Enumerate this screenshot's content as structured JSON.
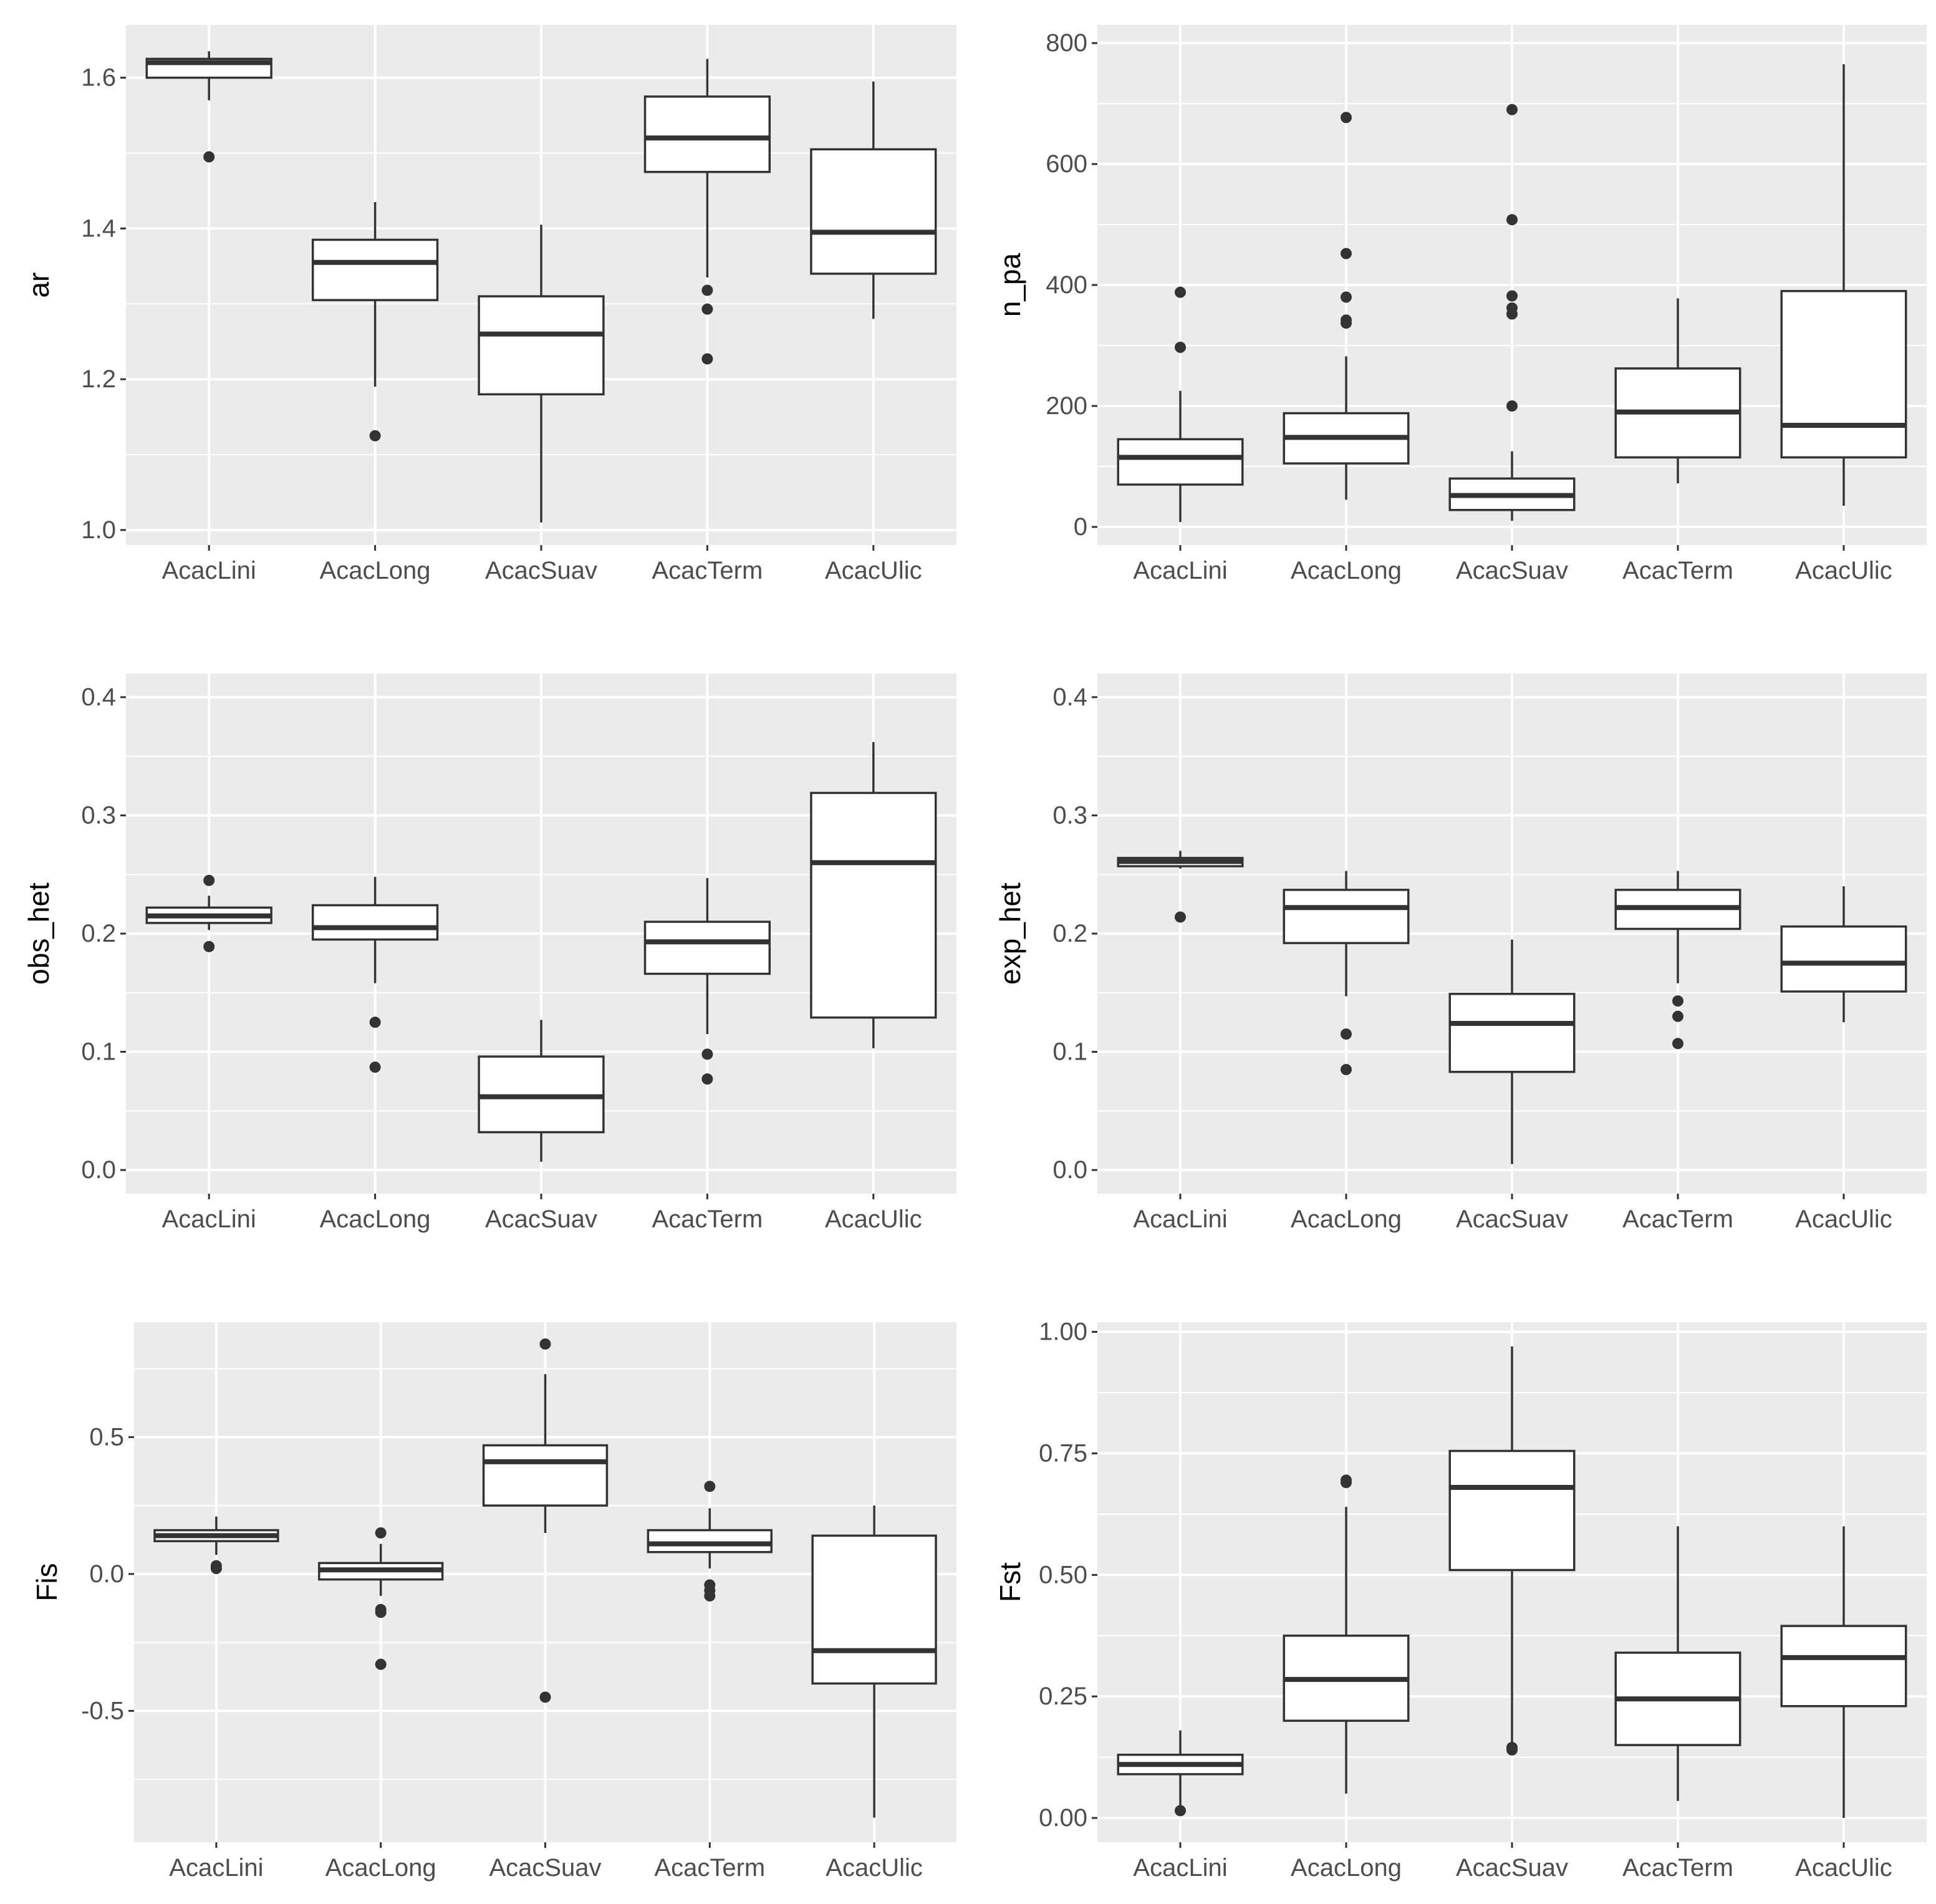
{
  "chart_data": [
    {
      "type": "box",
      "ylabel": "ar",
      "categories": [
        "AcacLini",
        "AcacLong",
        "AcacSuav",
        "AcacTerm",
        "AcacUlic"
      ],
      "ylim": [
        0.98,
        1.67
      ],
      "yticks": [
        1.0,
        1.2,
        1.4,
        1.6
      ],
      "ytick_labels": [
        "1.0",
        "1.2",
        "1.4",
        "1.6"
      ],
      "boxes": [
        {
          "whisker_low": 1.57,
          "q1": 1.6,
          "median": 1.62,
          "q3": 1.625,
          "whisker_high": 1.635,
          "outliers": [
            1.495
          ]
        },
        {
          "whisker_low": 1.19,
          "q1": 1.305,
          "median": 1.355,
          "q3": 1.385,
          "whisker_high": 1.435,
          "outliers": [
            1.125
          ]
        },
        {
          "whisker_low": 1.01,
          "q1": 1.18,
          "median": 1.26,
          "q3": 1.31,
          "whisker_high": 1.405,
          "outliers": []
        },
        {
          "whisker_low": 1.335,
          "q1": 1.475,
          "median": 1.52,
          "q3": 1.575,
          "whisker_high": 1.625,
          "outliers": [
            1.318,
            1.293,
            1.227
          ]
        },
        {
          "whisker_low": 1.28,
          "q1": 1.34,
          "median": 1.395,
          "q3": 1.505,
          "whisker_high": 1.595,
          "outliers": []
        }
      ]
    },
    {
      "type": "box",
      "ylabel": "n_pa",
      "categories": [
        "AcacLini",
        "AcacLong",
        "AcacSuav",
        "AcacTerm",
        "AcacUlic"
      ],
      "ylim": [
        -30,
        830
      ],
      "yticks": [
        0,
        200,
        400,
        600,
        800
      ],
      "ytick_labels": [
        "0",
        "200",
        "400",
        "600",
        "800"
      ],
      "boxes": [
        {
          "whisker_low": 8,
          "q1": 70,
          "median": 115,
          "q3": 145,
          "whisker_high": 225,
          "outliers": [
            388,
            297
          ]
        },
        {
          "whisker_low": 45,
          "q1": 105,
          "median": 148,
          "q3": 188,
          "whisker_high": 282,
          "outliers": [
            677,
            452,
            380,
            342,
            337
          ]
        },
        {
          "whisker_low": 10,
          "q1": 28,
          "median": 52,
          "q3": 80,
          "whisker_high": 125,
          "outliers": [
            690,
            508,
            382,
            362,
            352,
            200
          ]
        },
        {
          "whisker_low": 72,
          "q1": 115,
          "median": 190,
          "q3": 262,
          "whisker_high": 378,
          "outliers": []
        },
        {
          "whisker_low": 35,
          "q1": 115,
          "median": 168,
          "q3": 390,
          "whisker_high": 765,
          "outliers": []
        }
      ]
    },
    {
      "type": "box",
      "ylabel": "obs_het",
      "categories": [
        "AcacLini",
        "AcacLong",
        "AcacSuav",
        "AcacTerm",
        "AcacUlic"
      ],
      "ylim": [
        -0.02,
        0.42
      ],
      "yticks": [
        0.0,
        0.1,
        0.2,
        0.3,
        0.4
      ],
      "ytick_labels": [
        "0.0",
        "0.1",
        "0.2",
        "0.3",
        "0.4"
      ],
      "boxes": [
        {
          "whisker_low": 0.203,
          "q1": 0.209,
          "median": 0.215,
          "q3": 0.222,
          "whisker_high": 0.232,
          "outliers": [
            0.245,
            0.189
          ]
        },
        {
          "whisker_low": 0.158,
          "q1": 0.195,
          "median": 0.205,
          "q3": 0.224,
          "whisker_high": 0.248,
          "outliers": [
            0.125,
            0.087
          ]
        },
        {
          "whisker_low": 0.007,
          "q1": 0.032,
          "median": 0.062,
          "q3": 0.096,
          "whisker_high": 0.127,
          "outliers": []
        },
        {
          "whisker_low": 0.115,
          "q1": 0.166,
          "median": 0.193,
          "q3": 0.21,
          "whisker_high": 0.247,
          "outliers": [
            0.098,
            0.077
          ]
        },
        {
          "whisker_low": 0.103,
          "q1": 0.129,
          "median": 0.26,
          "q3": 0.319,
          "whisker_high": 0.362,
          "outliers": []
        }
      ]
    },
    {
      "type": "box",
      "ylabel": "exp_het",
      "categories": [
        "AcacLini",
        "AcacLong",
        "AcacSuav",
        "AcacTerm",
        "AcacUlic"
      ],
      "ylim": [
        -0.02,
        0.42
      ],
      "yticks": [
        0.0,
        0.1,
        0.2,
        0.3,
        0.4
      ],
      "ytick_labels": [
        "0.0",
        "0.1",
        "0.2",
        "0.3",
        "0.4"
      ],
      "boxes": [
        {
          "whisker_low": 0.255,
          "q1": 0.257,
          "median": 0.261,
          "q3": 0.264,
          "whisker_high": 0.27,
          "outliers": [
            0.214
          ]
        },
        {
          "whisker_low": 0.147,
          "q1": 0.192,
          "median": 0.222,
          "q3": 0.237,
          "whisker_high": 0.253,
          "outliers": [
            0.115,
            0.085
          ]
        },
        {
          "whisker_low": 0.005,
          "q1": 0.083,
          "median": 0.124,
          "q3": 0.149,
          "whisker_high": 0.195,
          "outliers": []
        },
        {
          "whisker_low": 0.158,
          "q1": 0.204,
          "median": 0.222,
          "q3": 0.237,
          "whisker_high": 0.253,
          "outliers": [
            0.143,
            0.13,
            0.107
          ]
        },
        {
          "whisker_low": 0.125,
          "q1": 0.151,
          "median": 0.175,
          "q3": 0.206,
          "whisker_high": 0.24,
          "outliers": []
        }
      ]
    },
    {
      "type": "box",
      "ylabel": "Fis",
      "categories": [
        "AcacLini",
        "AcacLong",
        "AcacSuav",
        "AcacTerm",
        "AcacUlic"
      ],
      "ylim": [
        -0.98,
        0.92
      ],
      "yticks": [
        -0.5,
        0.0,
        0.5
      ],
      "ytick_labels": [
        "-0.5",
        "0.0",
        "0.5"
      ],
      "boxes": [
        {
          "whisker_low": 0.07,
          "q1": 0.12,
          "median": 0.14,
          "q3": 0.16,
          "whisker_high": 0.21,
          "outliers": [
            0.03,
            0.02
          ]
        },
        {
          "whisker_low": -0.08,
          "q1": -0.02,
          "median": 0.015,
          "q3": 0.04,
          "whisker_high": 0.11,
          "outliers": [
            0.15,
            -0.13,
            -0.14,
            -0.33
          ]
        },
        {
          "whisker_low": 0.15,
          "q1": 0.25,
          "median": 0.41,
          "q3": 0.47,
          "whisker_high": 0.73,
          "outliers": [
            0.84,
            -0.45
          ]
        },
        {
          "whisker_low": 0.02,
          "q1": 0.08,
          "median": 0.11,
          "q3": 0.16,
          "whisker_high": 0.24,
          "outliers": [
            0.32,
            -0.04,
            -0.06,
            -0.08
          ]
        },
        {
          "whisker_low": -0.89,
          "q1": -0.4,
          "median": -0.28,
          "q3": 0.14,
          "whisker_high": 0.25,
          "outliers": []
        }
      ]
    },
    {
      "type": "box",
      "ylabel": "Fst",
      "categories": [
        "AcacLini",
        "AcacLong",
        "AcacSuav",
        "AcacTerm",
        "AcacUlic"
      ],
      "ylim": [
        -0.05,
        1.02
      ],
      "yticks": [
        0.0,
        0.25,
        0.5,
        0.75,
        1.0
      ],
      "ytick_labels": [
        "0.00",
        "0.25",
        "0.50",
        "0.75",
        "1.00"
      ],
      "boxes": [
        {
          "whisker_low": 0.025,
          "q1": 0.09,
          "median": 0.11,
          "q3": 0.13,
          "whisker_high": 0.18,
          "outliers": [
            0.015
          ]
        },
        {
          "whisker_low": 0.05,
          "q1": 0.2,
          "median": 0.285,
          "q3": 0.375,
          "whisker_high": 0.64,
          "outliers": [
            0.695,
            0.69
          ]
        },
        {
          "whisker_low": 0.14,
          "q1": 0.51,
          "median": 0.68,
          "q3": 0.755,
          "whisker_high": 0.97,
          "outliers": [
            0.145,
            0.14
          ]
        },
        {
          "whisker_low": 0.035,
          "q1": 0.15,
          "median": 0.245,
          "q3": 0.34,
          "whisker_high": 0.6,
          "outliers": []
        },
        {
          "whisker_low": 0.0,
          "q1": 0.23,
          "median": 0.33,
          "q3": 0.395,
          "whisker_high": 0.6,
          "outliers": []
        }
      ]
    }
  ]
}
